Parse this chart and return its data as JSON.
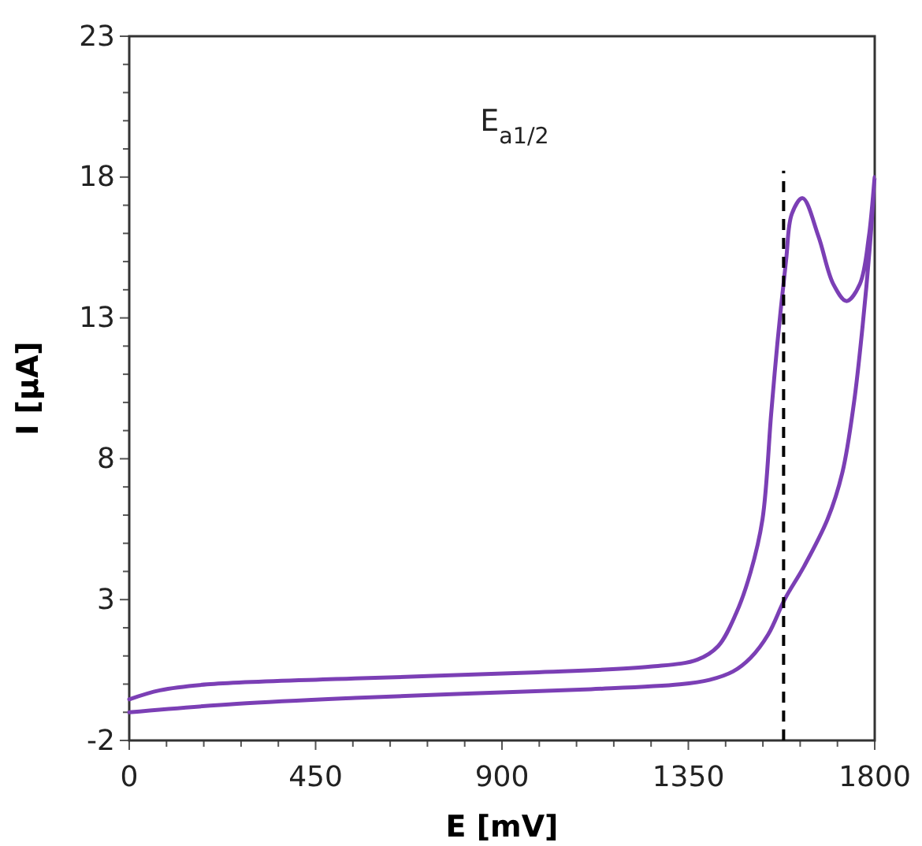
{
  "chart_data": {
    "type": "line",
    "xlabel": "E [mV]",
    "ylabel": "I [μA]",
    "xlim": [
      0,
      1800
    ],
    "ylim": [
      -2,
      23
    ],
    "xticks": [
      0,
      {
        "value": 90,
        "label": null
      },
      {
        "value": 180,
        "label": null
      },
      {
        "value": 270,
        "label": null
      },
      {
        "value": 360,
        "label": null
      },
      450,
      {
        "value": 540,
        "label": null
      },
      {
        "value": 630,
        "label": null
      },
      {
        "value": 720,
        "label": null
      },
      {
        "value": 810,
        "label": null
      },
      900,
      {
        "value": 990,
        "label": null
      },
      {
        "value": 1080,
        "label": null
      },
      {
        "value": 1170,
        "label": null
      },
      {
        "value": 1260,
        "label": null
      },
      1350,
      {
        "value": 1440,
        "label": null
      },
      {
        "value": 1530,
        "label": null
      },
      {
        "value": 1620,
        "label": null
      },
      {
        "value": 1710,
        "label": null
      },
      1800
    ],
    "yticks": [
      -2,
      {
        "value": -1,
        "label": null
      },
      {
        "value": 0,
        "label": null
      },
      {
        "value": 1,
        "label": null
      },
      {
        "value": 2,
        "label": null
      },
      3,
      {
        "value": 4,
        "label": null
      },
      {
        "value": 5,
        "label": null
      },
      {
        "value": 6,
        "label": null
      },
      {
        "value": 7,
        "label": null
      },
      8,
      {
        "value": 9,
        "label": null
      },
      {
        "value": 10,
        "label": null
      },
      {
        "value": 11,
        "label": null
      },
      {
        "value": 12,
        "label": null
      },
      13,
      {
        "value": 14,
        "label": null
      },
      {
        "value": 15,
        "label": null
      },
      {
        "value": 16,
        "label": null
      },
      {
        "value": 17,
        "label": null
      },
      18,
      {
        "value": 19,
        "label": null
      },
      {
        "value": 20,
        "label": null
      },
      {
        "value": 21,
        "label": null
      },
      {
        "value": 22,
        "label": null
      },
      23
    ],
    "grid": false,
    "marker": "none",
    "line_style": "solid",
    "series": [
      {
        "color": "#7b3fb5",
        "x": [
          0,
          260,
          545,
          830,
          1115,
          1329,
          1401,
          1458,
          1500,
          1543,
          1583,
          1629,
          1686,
          1722,
          1750,
          1771,
          1788,
          1800,
          1786,
          1764,
          1732,
          1700,
          1664,
          1626,
          1600,
          1586,
          1565,
          1550,
          1529,
          1500,
          1465,
          1422,
          1372,
          1258,
          973,
          545,
          188,
          74,
          0
        ],
        "values": [
          -1.0,
          -0.7,
          -0.49,
          -0.33,
          -0.18,
          -0.01,
          0.15,
          0.45,
          0.93,
          1.77,
          3.02,
          4.17,
          5.85,
          7.52,
          10.0,
          12.75,
          15.5,
          18.0,
          15.9,
          14.2,
          13.6,
          14.2,
          15.9,
          17.25,
          16.7,
          15.05,
          12.1,
          9.6,
          5.85,
          3.96,
          2.5,
          1.35,
          0.87,
          0.62,
          0.41,
          0.2,
          -0.01,
          -0.22,
          -0.54
        ]
      }
    ],
    "ref_lines": [
      {
        "axis": "x",
        "value": 1580,
        "label": "E$_{a1/2}$",
        "color": "#000000",
        "line_style": "dashed"
      }
    ]
  }
}
